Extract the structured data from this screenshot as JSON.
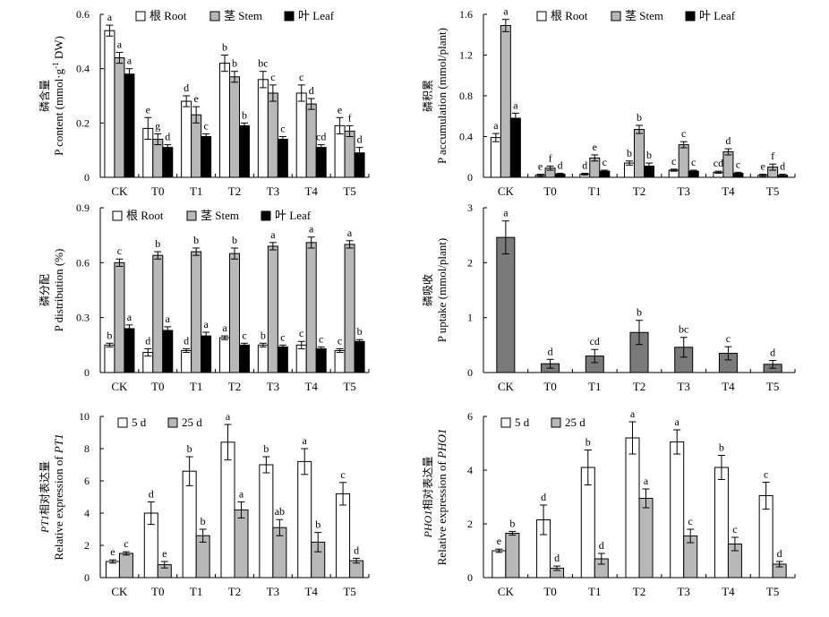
{
  "chart_data": [
    {
      "id": "a",
      "type": "bar",
      "ylabel_cn": "磷含量",
      "ylabel": "P content (mmol·g",
      "ylabel_sup": "-1",
      "ylabel_tail": " DW)",
      "ylim": [
        0,
        0.6
      ],
      "yticks": [
        "0",
        "0.2",
        "0.4",
        "0.6"
      ],
      "categories": [
        "CK",
        "T0",
        "T1",
        "T2",
        "T3",
        "T4",
        "T5"
      ],
      "series": [
        {
          "name": "根 Root",
          "fill": "white",
          "values": [
            0.54,
            0.18,
            0.28,
            0.42,
            0.36,
            0.31,
            0.19
          ],
          "errors": [
            0.02,
            0.04,
            0.02,
            0.03,
            0.03,
            0.03,
            0.03
          ],
          "letters": [
            "a",
            "e",
            "d",
            "b",
            "bc",
            "c",
            "e"
          ]
        },
        {
          "name": "茎 Stem",
          "fill": "gray",
          "values": [
            0.44,
            0.14,
            0.23,
            0.37,
            0.31,
            0.27,
            0.17
          ],
          "errors": [
            0.02,
            0.02,
            0.03,
            0.02,
            0.03,
            0.02,
            0.02
          ],
          "letters": [
            "a",
            "g",
            "e",
            "b",
            "c",
            "d",
            "f"
          ]
        },
        {
          "name": "叶 Leaf",
          "fill": "black",
          "values": [
            0.38,
            0.11,
            0.15,
            0.19,
            0.14,
            0.11,
            0.09
          ],
          "errors": [
            0.02,
            0.01,
            0.01,
            0.01,
            0.01,
            0.01,
            0.02
          ],
          "letters": [
            "a",
            "d",
            "c",
            "b",
            "c",
            "cd",
            "d"
          ]
        }
      ]
    },
    {
      "id": "b",
      "type": "bar",
      "ylabel_cn": "磷积累",
      "ylabel": "P accumulation (mmol/plant)",
      "ylim": [
        0,
        1.6
      ],
      "yticks": [
        "0",
        "0.4",
        "0.8",
        "1.2",
        "1.6"
      ],
      "categories": [
        "CK",
        "T0",
        "T1",
        "T2",
        "T3",
        "T4",
        "T5"
      ],
      "series": [
        {
          "name": "根 Root",
          "fill": "white",
          "values": [
            0.39,
            0.02,
            0.03,
            0.14,
            0.07,
            0.05,
            0.02
          ],
          "errors": [
            0.04,
            0.01,
            0.01,
            0.02,
            0.01,
            0.01,
            0.01
          ],
          "letters": [
            "a",
            "e",
            "d",
            "b",
            "c",
            "cd",
            "e"
          ]
        },
        {
          "name": "茎 Stem",
          "fill": "gray",
          "values": [
            1.49,
            0.09,
            0.19,
            0.47,
            0.32,
            0.25,
            0.1
          ],
          "errors": [
            0.06,
            0.02,
            0.03,
            0.04,
            0.03,
            0.03,
            0.03
          ],
          "letters": [
            "a",
            "f",
            "e",
            "b",
            "c",
            "d",
            "f"
          ]
        },
        {
          "name": "叶 Leaf",
          "fill": "black",
          "values": [
            0.58,
            0.03,
            0.06,
            0.11,
            0.06,
            0.04,
            0.02
          ],
          "errors": [
            0.05,
            0.01,
            0.01,
            0.03,
            0.01,
            0.01,
            0.01
          ],
          "letters": [
            "a",
            "d",
            "c",
            "b",
            "c",
            "c",
            "d"
          ]
        }
      ]
    },
    {
      "id": "c",
      "type": "bar",
      "ylabel_cn": "磷分配",
      "ylabel": "P distribution (%)",
      "ylim": [
        0,
        0.9
      ],
      "yticks": [
        "0",
        "0.3",
        "0.6",
        "0.9"
      ],
      "categories": [
        "CK",
        "T0",
        "T1",
        "T2",
        "T3",
        "T4",
        "T5"
      ],
      "series": [
        {
          "name": "根 Root",
          "fill": "white",
          "values": [
            0.15,
            0.11,
            0.12,
            0.19,
            0.15,
            0.15,
            0.12
          ],
          "errors": [
            0.01,
            0.02,
            0.01,
            0.01,
            0.01,
            0.02,
            0.01
          ],
          "letters": [
            "b",
            "d",
            "d",
            "a",
            "b",
            "c",
            "c"
          ]
        },
        {
          "name": "茎 Stem",
          "fill": "gray",
          "values": [
            0.6,
            0.64,
            0.66,
            0.65,
            0.69,
            0.71,
            0.7
          ],
          "errors": [
            0.02,
            0.02,
            0.02,
            0.03,
            0.02,
            0.03,
            0.02
          ],
          "letters": [
            "c",
            "b",
            "b",
            "b",
            "a",
            "a",
            "a"
          ]
        },
        {
          "name": "叶 Leaf",
          "fill": "black",
          "values": [
            0.24,
            0.23,
            0.2,
            0.15,
            0.14,
            0.13,
            0.17
          ],
          "errors": [
            0.02,
            0.02,
            0.02,
            0.01,
            0.01,
            0.01,
            0.01
          ],
          "letters": [
            "a",
            "a",
            "a",
            "c",
            "c",
            "c",
            "b"
          ]
        }
      ]
    },
    {
      "id": "d",
      "type": "bar",
      "ylabel_cn": "磷吸收",
      "ylabel": "P uptake (mmol/plant)",
      "ylim": [
        0,
        3
      ],
      "yticks": [
        "0",
        "1",
        "2",
        "3"
      ],
      "categories": [
        "CK",
        "T0",
        "T1",
        "T2",
        "T3",
        "T4",
        "T5"
      ],
      "series": [
        {
          "name": "",
          "fill": "dark",
          "values": [
            2.46,
            0.16,
            0.3,
            0.73,
            0.46,
            0.35,
            0.15
          ],
          "errors": [
            0.3,
            0.08,
            0.12,
            0.22,
            0.18,
            0.12,
            0.07
          ],
          "letters": [
            "a",
            "d",
            "cd",
            "b",
            "bc",
            "c",
            "d"
          ]
        }
      ]
    },
    {
      "id": "e",
      "type": "bar",
      "ylabel_gene": "PT1",
      "ylabel_cn_tail": "相对表达量",
      "ylabel": "Relative expression of ",
      "ylabel_italic": "PT1",
      "ylim": [
        0,
        10
      ],
      "yticks": [
        "0",
        "2",
        "4",
        "6",
        "8",
        "10"
      ],
      "categories": [
        "CK",
        "T0",
        "T1",
        "T2",
        "T3",
        "T4",
        "T5"
      ],
      "series": [
        {
          "name": "5 d",
          "fill": "white",
          "values": [
            1.0,
            4.0,
            6.6,
            8.4,
            7.0,
            7.2,
            5.2
          ],
          "errors": [
            0.1,
            0.7,
            0.9,
            1.1,
            0.5,
            0.8,
            0.7
          ],
          "letters": [
            "e",
            "d",
            "b",
            "a",
            "b",
            "a",
            "c"
          ]
        },
        {
          "name": "25 d",
          "fill": "gray",
          "values": [
            1.5,
            0.8,
            2.6,
            4.2,
            3.1,
            2.2,
            1.05
          ],
          "errors": [
            0.1,
            0.2,
            0.4,
            0.5,
            0.5,
            0.6,
            0.15
          ],
          "letters": [
            "c",
            "e",
            "b",
            "a",
            "ab",
            "b",
            "d"
          ]
        }
      ]
    },
    {
      "id": "f",
      "type": "bar",
      "ylabel_gene": "PHO1",
      "ylabel_cn_tail": "相对表达量",
      "ylabel": "Relative expression of ",
      "ylabel_italic": "PHO1",
      "ylim": [
        0,
        6
      ],
      "yticks": [
        "0",
        "2",
        "4",
        "6"
      ],
      "categories": [
        "CK",
        "T0",
        "T1",
        "T2",
        "T3",
        "T4",
        "T5"
      ],
      "series": [
        {
          "name": "5 d",
          "fill": "white",
          "values": [
            1.0,
            2.15,
            4.1,
            5.2,
            5.05,
            4.1,
            3.05
          ],
          "errors": [
            0.06,
            0.55,
            0.65,
            0.6,
            0.45,
            0.45,
            0.5
          ],
          "letters": [
            "e",
            "d",
            "b",
            "a",
            "a",
            "b",
            "c"
          ]
        },
        {
          "name": "25 d",
          "fill": "gray",
          "values": [
            1.65,
            0.35,
            0.7,
            2.95,
            1.55,
            1.25,
            0.5
          ],
          "errors": [
            0.07,
            0.08,
            0.2,
            0.35,
            0.25,
            0.25,
            0.1
          ],
          "letters": [
            "b",
            "d",
            "d",
            "a",
            "c",
            "c",
            "d"
          ]
        }
      ]
    }
  ],
  "colors": {
    "white": "#ffffff",
    "gray": "#b8b8b8",
    "black": "#000000",
    "dark": "#7a7a7a"
  }
}
